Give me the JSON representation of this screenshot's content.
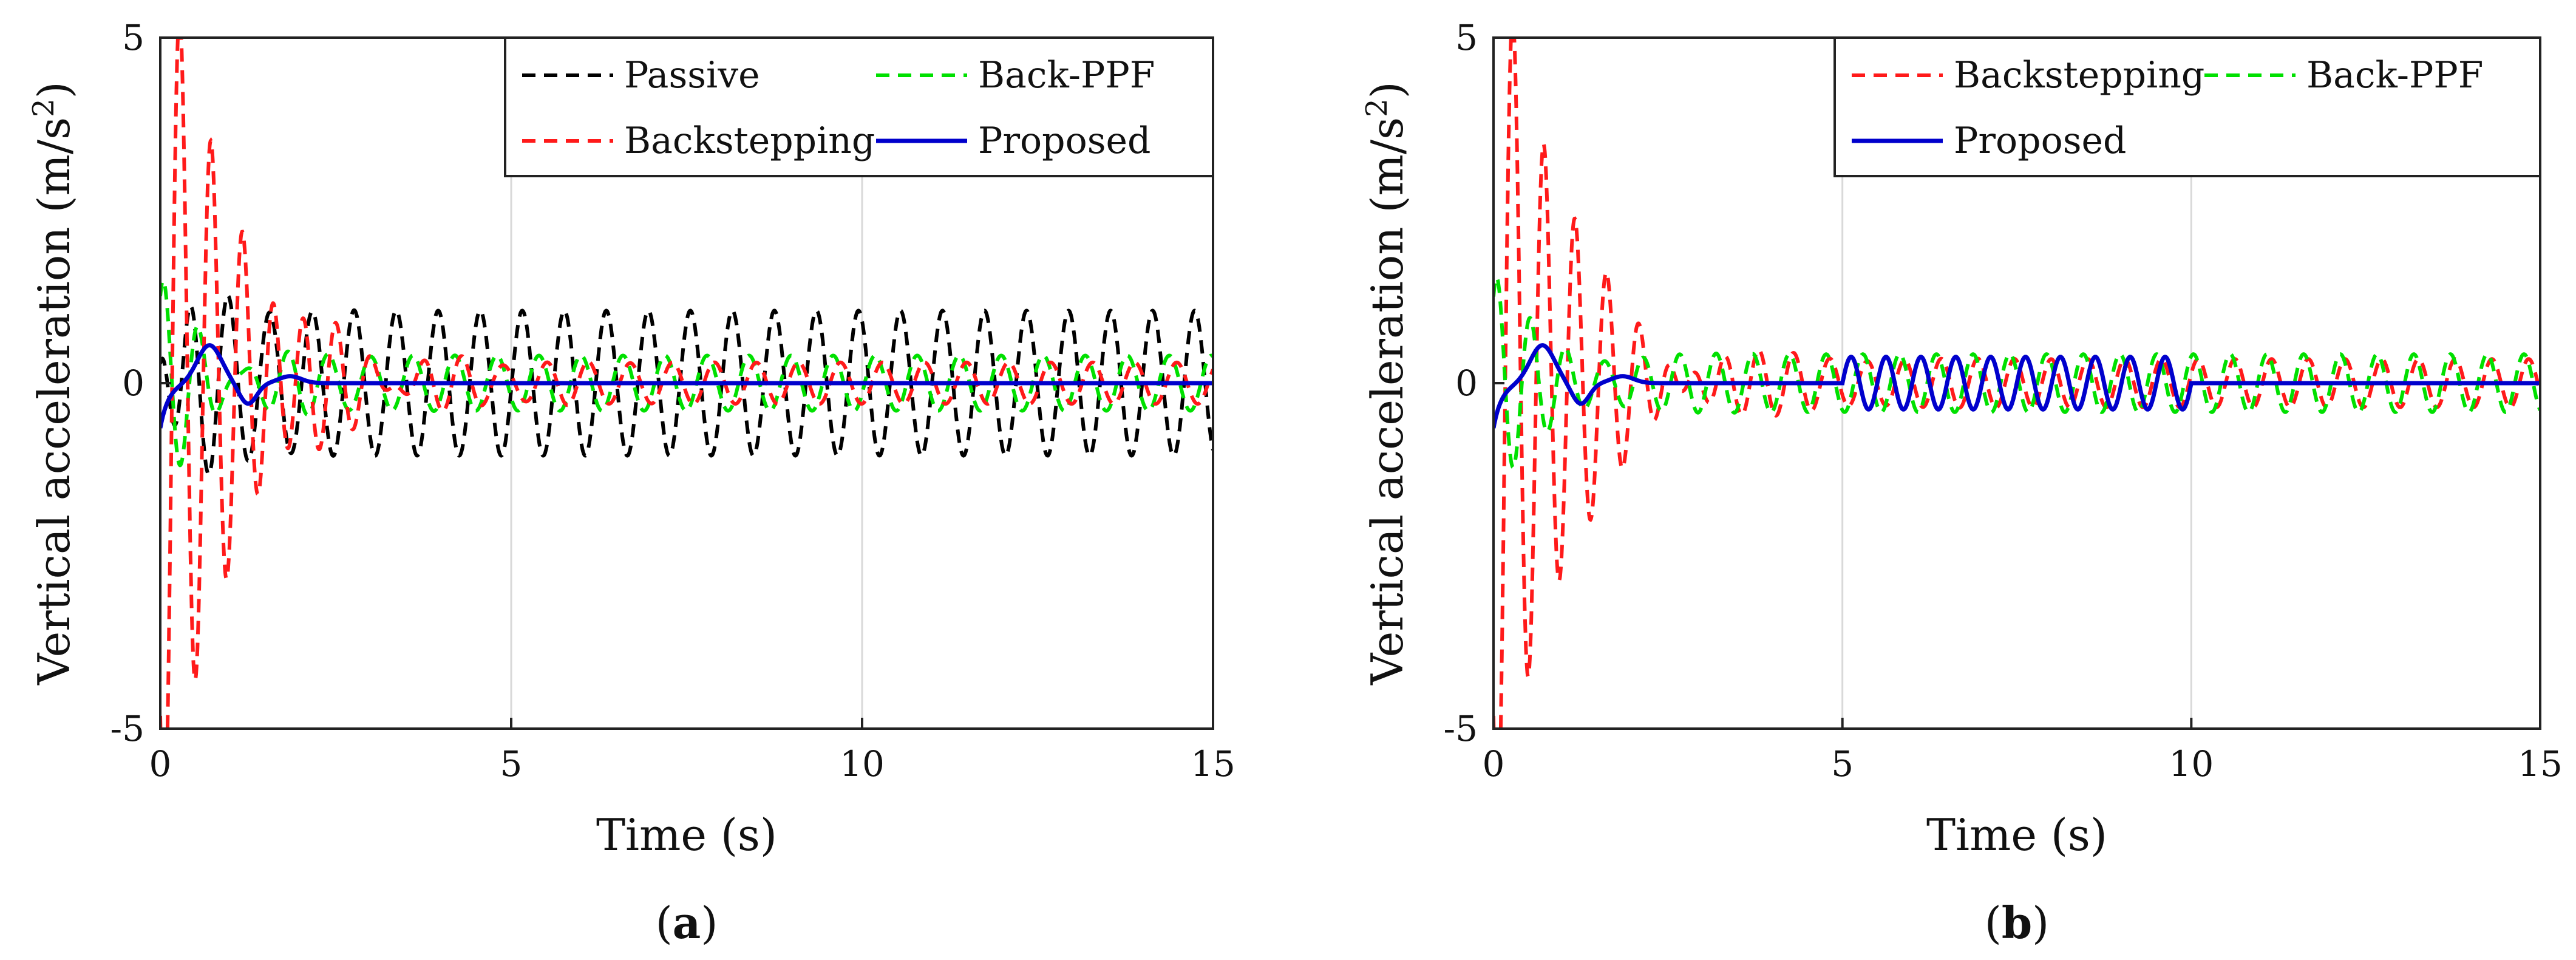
{
  "chart_data": [
    {
      "type": "line",
      "panel_label": "(a)",
      "xlabel": "Time (s)",
      "ylabel_prefix": "Vertical acceleration (m/s",
      "ylabel_sup": "2",
      "ylabel_suffix": ")",
      "xlim": [
        0,
        15
      ],
      "ylim": [
        -5,
        5
      ],
      "xticks": [
        "0",
        "5",
        "10",
        "15"
      ],
      "yticks": [
        "5",
        "0",
        "-5"
      ],
      "grid": "vertical",
      "legend_position": "top-right",
      "legend_columns": 2,
      "series": [
        {
          "name": "Passive",
          "color": "#000000",
          "style": "dashed",
          "model": {
            "kind": "sustained",
            "amp": 1.05,
            "freq": 1.67,
            "phase": 4.0,
            "decay": 0.0,
            "amp0": 1.5,
            "tau": 0.5
          }
        },
        {
          "name": "Back-PPF",
          "color": "#00e000",
          "style": "dashed",
          "model": {
            "kind": "sustained",
            "amp": 0.4,
            "freq": 1.67,
            "phase": 1.5,
            "decay": 0.0,
            "amp0": 1.2,
            "tau": 0.7
          }
        },
        {
          "name": "Backstepping",
          "color": "#ff1a1a",
          "style": "dashed",
          "model": {
            "kind": "decay",
            "amp": 7.0,
            "freq": 2.25,
            "phase": 3.9,
            "tau": 1.0,
            "floor": 0.3,
            "floor_freq": 1.67
          }
        },
        {
          "name": "Proposed",
          "color": "#0000cc",
          "style": "solid",
          "model": {
            "kind": "proposed",
            "excite": false
          }
        }
      ]
    },
    {
      "type": "line",
      "panel_label": "(b)",
      "xlabel": "Time (s)",
      "ylabel_prefix": "Vertical acceleration (m/s",
      "ylabel_sup": "2",
      "ylabel_suffix": ")",
      "xlim": [
        0,
        15
      ],
      "ylim": [
        -5,
        5
      ],
      "xticks": [
        "0",
        "5",
        "10",
        "15"
      ],
      "yticks": [
        "5",
        "0",
        "-5"
      ],
      "grid": "vertical",
      "legend_position": "top-right",
      "legend_columns": 2,
      "series": [
        {
          "name": "Backstepping",
          "color": "#ff1a1a",
          "style": "dashed",
          "model": {
            "kind": "decay",
            "amp": 7.0,
            "freq": 2.25,
            "phase": 3.9,
            "tau": 1.0,
            "floor": 0.35,
            "floor_freq": 1.9
          }
        },
        {
          "name": "Back-PPF",
          "color": "#00e000",
          "style": "dashed",
          "model": {
            "kind": "sustained",
            "amp": 0.42,
            "freq": 1.9,
            "phase": 1.2,
            "decay": 0.0,
            "amp0": 1.2,
            "tau": 0.7
          }
        },
        {
          "name": "Proposed",
          "color": "#0000cc",
          "style": "solid",
          "model": {
            "kind": "proposed",
            "excite": true,
            "excite_from": 5,
            "excite_to": 10,
            "excite_amp": 0.38,
            "excite_freq": 2.0
          }
        }
      ]
    }
  ]
}
